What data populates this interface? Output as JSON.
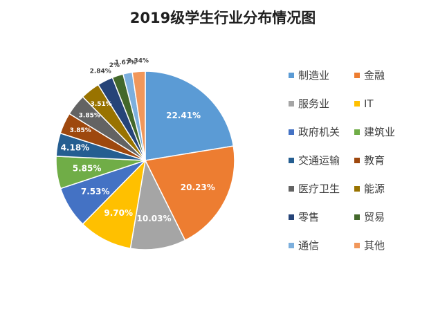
{
  "chart_data": {
    "type": "pie",
    "title": "2019级学生行业分布情况图",
    "legend_position": "right",
    "slices": [
      {
        "label": "制造业",
        "value": 22.41,
        "display": "22.41%",
        "color": "#5B9BD5"
      },
      {
        "label": "金融",
        "value": 20.23,
        "display": "20.23%",
        "color": "#ED7D31"
      },
      {
        "label": "服务业",
        "value": 10.03,
        "display": "10.03%",
        "color": "#A5A5A5"
      },
      {
        "label": "IT",
        "value": 9.7,
        "display": "9.70%",
        "color": "#FFC000"
      },
      {
        "label": "政府机关",
        "value": 7.53,
        "display": "7.53%",
        "color": "#4472C4"
      },
      {
        "label": "建筑业",
        "value": 5.85,
        "display": "5.85%",
        "color": "#70AD47"
      },
      {
        "label": "交通运输",
        "value": 4.18,
        "display": "4.18%",
        "color": "#255E91"
      },
      {
        "label": "教育",
        "value": 3.85,
        "display": "3.85%",
        "color": "#9E480E"
      },
      {
        "label": "医疗卫生",
        "value": 3.85,
        "display": "3.85%",
        "color": "#636363"
      },
      {
        "label": "能源",
        "value": 3.51,
        "display": "3.51%",
        "color": "#997300"
      },
      {
        "label": "零售",
        "value": 2.84,
        "display": "2.84%",
        "color": "#264478"
      },
      {
        "label": "贸易",
        "value": 2.0,
        "display": "2%",
        "color": "#43682B"
      },
      {
        "label": "通信",
        "value": 1.67,
        "display": "1.67%",
        "color": "#7CAFDD"
      },
      {
        "label": "其他",
        "value": 2.34,
        "display": "2.34%",
        "color": "#F1975A"
      }
    ]
  }
}
